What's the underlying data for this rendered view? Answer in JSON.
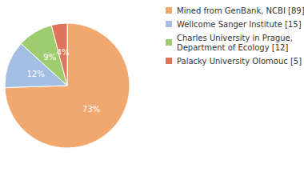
{
  "chart_data": {
    "type": "pie",
    "categories": [
      "Mined from GenBank, NCBI [89]",
      "Wellcome Sanger Institute [15]",
      "Charles University in Prague, Department of Ecology [12]",
      "Palacky University Olomouc [5]"
    ],
    "values": [
      73,
      12,
      9,
      4
    ],
    "value_labels": [
      "73%",
      "12%",
      "9%",
      "4%"
    ],
    "colors": [
      "#f1a86f",
      "#a4bde3",
      "#9fcc6f",
      "#e0745a"
    ],
    "data_labels": true,
    "legend": "top-right"
  }
}
